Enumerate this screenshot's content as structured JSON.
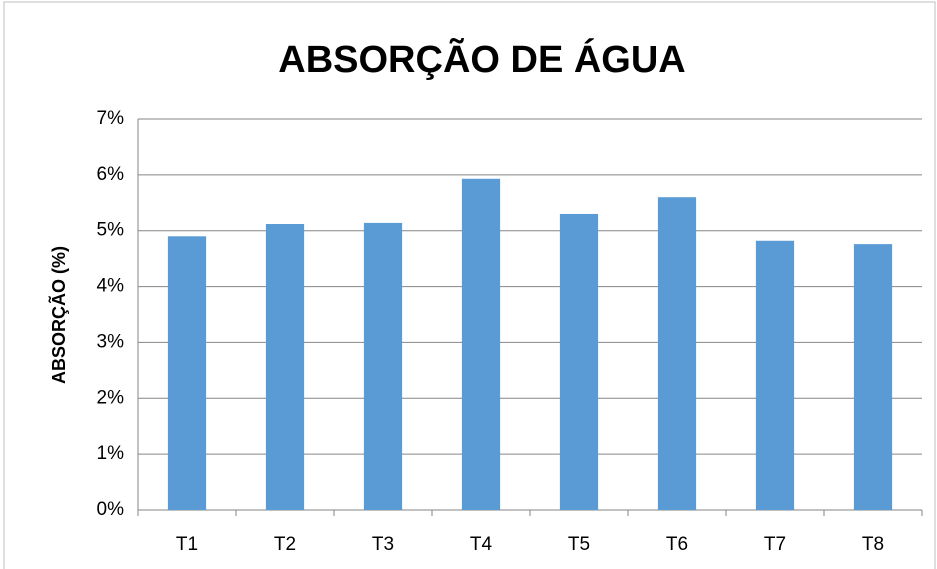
{
  "chart_data": {
    "type": "bar",
    "title": "ABSORÇÃO DE ÁGUA",
    "y_label": "ABSORÇÃO (%)",
    "categories": [
      "T1",
      "T2",
      "T3",
      "T4",
      "T5",
      "T6",
      "T7",
      "T8"
    ],
    "values": [
      4.9,
      5.12,
      5.14,
      5.93,
      5.3,
      5.6,
      4.82,
      4.76
    ],
    "color": "#5b9bd5",
    "ylim": [
      0,
      7
    ],
    "yticks": [
      {
        "value": 0,
        "label": "0%"
      },
      {
        "value": 1,
        "label": "1%"
      },
      {
        "value": 2,
        "label": "2%"
      },
      {
        "value": 3,
        "label": "3%"
      },
      {
        "value": 4,
        "label": "4%"
      },
      {
        "value": 5,
        "label": "5%"
      },
      {
        "value": 6,
        "label": "6%"
      },
      {
        "value": 7,
        "label": "7%"
      }
    ],
    "grid": true
  }
}
